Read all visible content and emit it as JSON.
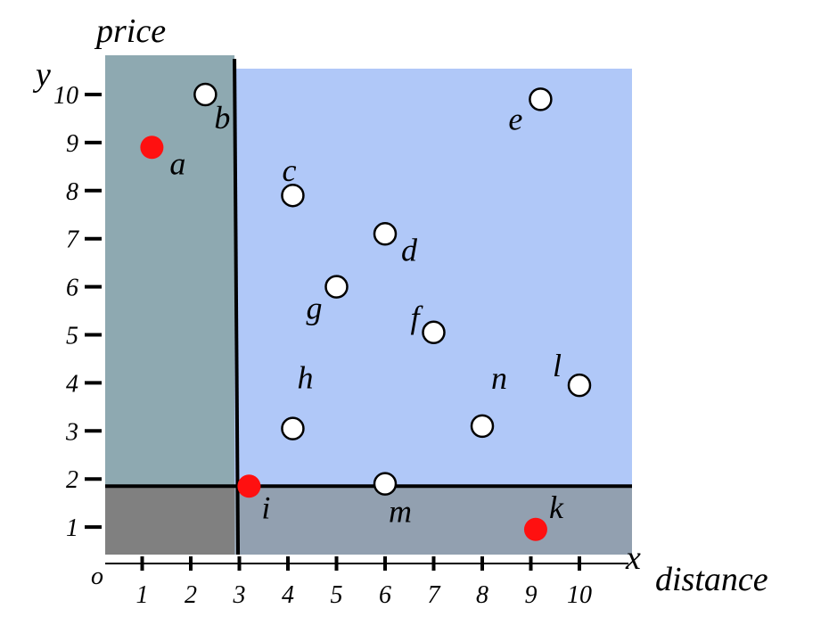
{
  "chart_data": {
    "type": "scatter",
    "x_title": "distance",
    "y_title": "price",
    "x_axis_letter": "x",
    "y_axis_letter": "y",
    "origin_label": "o",
    "x_ticks": [
      "1",
      "2",
      "3",
      "4",
      "5",
      "6",
      "7",
      "8",
      "9",
      "10"
    ],
    "y_ticks": [
      "1",
      "2",
      "3",
      "4",
      "5",
      "6",
      "7",
      "8",
      "9",
      "10"
    ],
    "xlim": [
      0,
      11
    ],
    "ylim": [
      0,
      10.5
    ],
    "divider_x": 2.9,
    "divider_y": 1.85,
    "points": [
      {
        "label": "a",
        "x": 1.2,
        "y": 8.9,
        "highlighted": true
      },
      {
        "label": "b",
        "x": 2.3,
        "y": 10.0,
        "highlighted": false
      },
      {
        "label": "c",
        "x": 4.1,
        "y": 7.9,
        "highlighted": false
      },
      {
        "label": "d",
        "x": 6.0,
        "y": 7.1,
        "highlighted": false
      },
      {
        "label": "e",
        "x": 9.2,
        "y": 9.9,
        "highlighted": false
      },
      {
        "label": "f",
        "x": 7.0,
        "y": 5.05,
        "highlighted": false
      },
      {
        "label": "g",
        "x": 5.0,
        "y": 6.0,
        "highlighted": false
      },
      {
        "label": "h",
        "x": 4.1,
        "y": 3.05,
        "highlighted": false
      },
      {
        "label": "i",
        "x": 3.2,
        "y": 1.85,
        "highlighted": true
      },
      {
        "label": "k",
        "x": 9.1,
        "y": 0.95,
        "highlighted": true
      },
      {
        "label": "l",
        "x": 10.0,
        "y": 3.95,
        "highlighted": false
      },
      {
        "label": "m",
        "x": 6.0,
        "y": 1.9,
        "highlighted": false
      },
      {
        "label": "n",
        "x": 8.0,
        "y": 3.1,
        "highlighted": false
      }
    ],
    "colors": {
      "dominant_region": "#b0c8f8",
      "left_region": "#8ea9b1",
      "bottom_region": "#92a0b0",
      "corner_region": "#808080",
      "highlight_point": "#ff1010",
      "open_point": "#ffffff"
    }
  }
}
